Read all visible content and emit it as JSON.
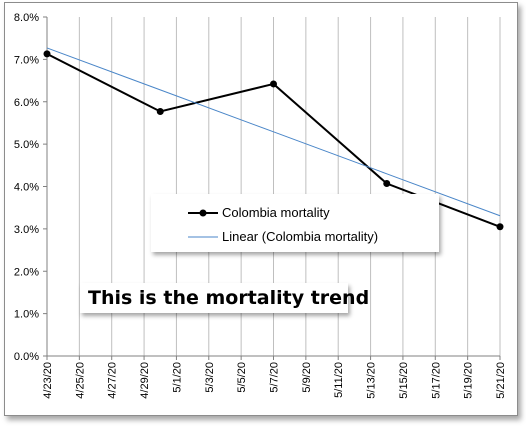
{
  "chart_data": {
    "type": "line",
    "x": [
      "4/23/20",
      "4/30/20",
      "5/7/20",
      "5/14/20",
      "5/21/20"
    ],
    "x_tick_labels": [
      "4/23/20",
      "4/25/20",
      "4/27/20",
      "4/29/20",
      "5/1/20",
      "5/3/20",
      "5/5/20",
      "5/7/20",
      "5/9/20",
      "5/11/20",
      "5/13/20",
      "5/15/20",
      "5/17/20",
      "5/19/20",
      "5/21/20"
    ],
    "y_tick_labels": [
      "0.0%",
      "1.0%",
      "2.0%",
      "3.0%",
      "4.0%",
      "5.0%",
      "6.0%",
      "7.0%",
      "8.0%"
    ],
    "ylim": [
      0,
      8
    ],
    "y_unit": "percent",
    "grid": "vertical",
    "series": [
      {
        "name": "Colombia mortality",
        "values": [
          7.13,
          5.77,
          6.42,
          4.07,
          3.05
        ],
        "color": "#000000",
        "marker": "circle"
      },
      {
        "name": "Linear (Colombia mortality)",
        "kind": "linear-trendline",
        "values": [
          7.27,
          6.28,
          5.29,
          4.3,
          3.31
        ],
        "color": "#4a86c8"
      }
    ],
    "legend_position": "center-right",
    "annotation": "This is the mortality trend"
  }
}
